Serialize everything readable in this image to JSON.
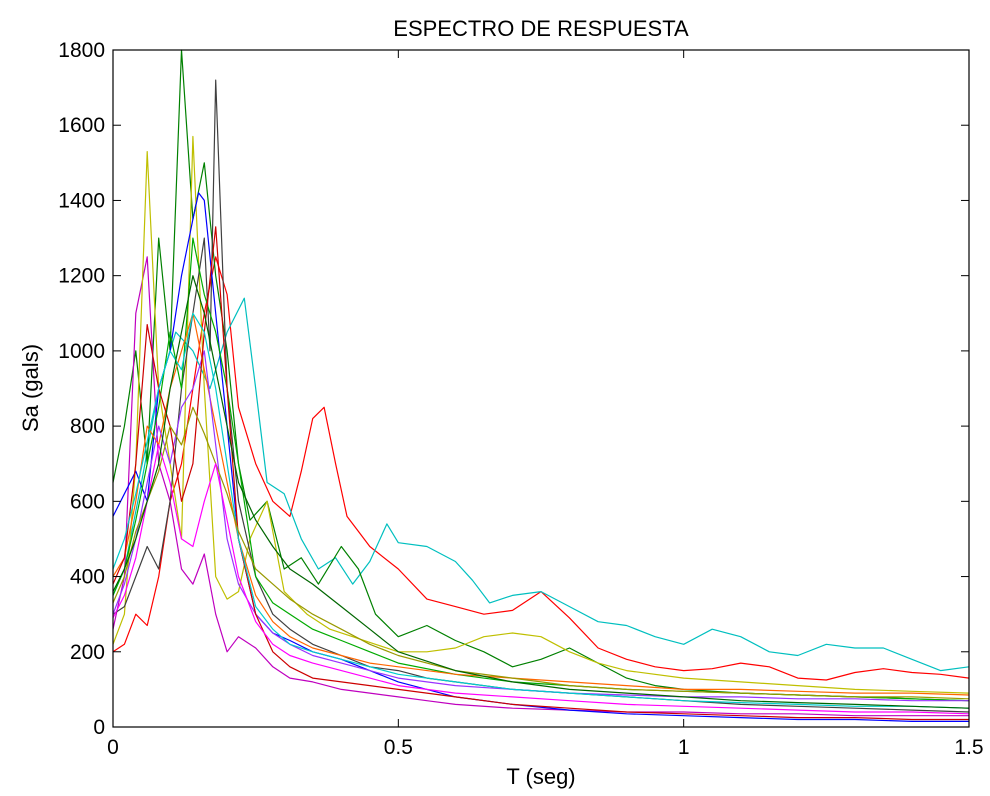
{
  "chart_data": {
    "type": "line",
    "title": "ESPECTRO DE RESPUESTA",
    "xlabel": "T (seg)",
    "ylabel": "Sa (gals)",
    "xlim": [
      0,
      1.5
    ],
    "ylim": [
      0,
      1800
    ],
    "xticks": [
      0,
      0.5,
      1,
      1.5
    ],
    "xtick_labels": [
      "0",
      "0.5",
      "1",
      "1.5"
    ],
    "yticks": [
      0,
      200,
      400,
      600,
      800,
      1000,
      1200,
      1400,
      1600,
      1800
    ],
    "ytick_labels": [
      "0",
      "200",
      "400",
      "600",
      "800",
      "1000",
      "1200",
      "1400",
      "1600",
      "1800"
    ],
    "grid": false,
    "legend": "none",
    "series": [
      {
        "color": "#ff0000",
        "x": [
          0,
          0.02,
          0.04,
          0.06,
          0.08,
          0.1,
          0.12,
          0.14,
          0.16,
          0.18,
          0.2,
          0.22,
          0.25,
          0.28,
          0.31,
          0.33,
          0.35,
          0.37,
          0.39,
          0.41,
          0.43,
          0.45,
          0.5,
          0.55,
          0.6,
          0.65,
          0.7,
          0.75,
          0.8,
          0.85,
          0.9,
          0.95,
          1.0,
          1.05,
          1.1,
          1.15,
          1.2,
          1.25,
          1.3,
          1.35,
          1.4,
          1.45,
          1.5
        ],
        "y": [
          200,
          220,
          300,
          270,
          400,
          600,
          700,
          900,
          1100,
          1250,
          1150,
          850,
          700,
          600,
          560,
          680,
          820,
          850,
          700,
          560,
          520,
          480,
          420,
          340,
          320,
          300,
          310,
          360,
          290,
          210,
          180,
          160,
          150,
          155,
          170,
          160,
          130,
          125,
          145,
          155,
          145,
          140,
          130
        ]
      },
      {
        "color": "#00bfbf",
        "x": [
          0,
          0.02,
          0.05,
          0.08,
          0.11,
          0.14,
          0.17,
          0.2,
          0.23,
          0.25,
          0.27,
          0.3,
          0.33,
          0.36,
          0.39,
          0.42,
          0.45,
          0.48,
          0.5,
          0.55,
          0.6,
          0.63,
          0.66,
          0.7,
          0.75,
          0.8,
          0.85,
          0.9,
          0.95,
          1.0,
          1.05,
          1.1,
          1.15,
          1.2,
          1.25,
          1.3,
          1.35,
          1.4,
          1.45,
          1.5
        ],
        "y": [
          350,
          420,
          650,
          900,
          1050,
          1000,
          900,
          1050,
          1140,
          900,
          650,
          620,
          500,
          420,
          450,
          380,
          440,
          540,
          490,
          480,
          440,
          390,
          330,
          350,
          360,
          320,
          280,
          270,
          240,
          220,
          260,
          240,
          200,
          190,
          220,
          210,
          210,
          180,
          150,
          160
        ]
      },
      {
        "color": "#008000",
        "x": [
          0,
          0.02,
          0.04,
          0.06,
          0.08,
          0.1,
          0.12,
          0.14,
          0.16,
          0.18,
          0.2,
          0.22,
          0.24,
          0.27,
          0.3,
          0.33,
          0.36,
          0.4,
          0.43,
          0.46,
          0.5,
          0.55,
          0.6,
          0.65,
          0.7,
          0.75,
          0.8,
          0.85,
          0.9,
          0.95,
          1.0,
          1.1,
          1.2,
          1.3,
          1.4,
          1.5
        ],
        "y": [
          650,
          800,
          1000,
          700,
          1300,
          1000,
          1800,
          1350,
          1500,
          1200,
          1000,
          700,
          550,
          600,
          420,
          450,
          380,
          480,
          420,
          300,
          240,
          270,
          230,
          200,
          160,
          180,
          210,
          170,
          130,
          110,
          100,
          90,
          85,
          80,
          75,
          70
        ]
      },
      {
        "color": "#bf00bf",
        "x": [
          0,
          0.02,
          0.04,
          0.06,
          0.08,
          0.1,
          0.12,
          0.14,
          0.16,
          0.18,
          0.2,
          0.22,
          0.25,
          0.28,
          0.31,
          0.35,
          0.4,
          0.45,
          0.5,
          0.55,
          0.6,
          0.7,
          0.8,
          0.9,
          1.0,
          1.1,
          1.2,
          1.3,
          1.4,
          1.5
        ],
        "y": [
          260,
          400,
          1100,
          1250,
          700,
          600,
          420,
          380,
          460,
          300,
          200,
          240,
          210,
          160,
          130,
          120,
          100,
          90,
          80,
          70,
          60,
          50,
          45,
          40,
          40,
          35,
          35,
          30,
          30,
          30
        ]
      },
      {
        "color": "#bfbf00",
        "x": [
          0,
          0.02,
          0.04,
          0.06,
          0.08,
          0.1,
          0.12,
          0.14,
          0.16,
          0.18,
          0.2,
          0.22,
          0.24,
          0.27,
          0.3,
          0.34,
          0.38,
          0.42,
          0.46,
          0.5,
          0.55,
          0.6,
          0.65,
          0.7,
          0.75,
          0.8,
          0.85,
          0.9,
          1.0,
          1.1,
          1.2,
          1.3,
          1.4,
          1.5
        ],
        "y": [
          220,
          300,
          700,
          1530,
          900,
          700,
          500,
          1570,
          900,
          400,
          340,
          360,
          500,
          600,
          360,
          300,
          260,
          240,
          220,
          200,
          200,
          210,
          240,
          250,
          240,
          200,
          170,
          150,
          130,
          120,
          110,
          100,
          95,
          90
        ]
      },
      {
        "color": "#404040",
        "x": [
          0,
          0.02,
          0.04,
          0.06,
          0.08,
          0.1,
          0.12,
          0.14,
          0.16,
          0.17,
          0.18,
          0.2,
          0.22,
          0.25,
          0.28,
          0.31,
          0.35,
          0.4,
          0.45,
          0.5,
          0.55,
          0.6,
          0.7,
          0.8,
          0.9,
          1.0,
          1.1,
          1.2,
          1.3,
          1.4,
          1.5
        ],
        "y": [
          300,
          320,
          400,
          480,
          420,
          600,
          900,
          1100,
          1300,
          1000,
          1720,
          900,
          600,
          400,
          300,
          260,
          220,
          190,
          160,
          150,
          130,
          120,
          100,
          90,
          80,
          70,
          60,
          55,
          50,
          45,
          40
        ]
      },
      {
        "color": "#0000ff",
        "x": [
          0,
          0.02,
          0.04,
          0.06,
          0.08,
          0.1,
          0.12,
          0.14,
          0.15,
          0.16,
          0.18,
          0.2,
          0.22,
          0.25,
          0.28,
          0.31,
          0.35,
          0.4,
          0.45,
          0.5,
          0.55,
          0.6,
          0.7,
          0.8,
          0.9,
          1.0,
          1.1,
          1.2,
          1.3,
          1.4,
          1.5
        ],
        "y": [
          560,
          620,
          680,
          600,
          900,
          1000,
          1200,
          1350,
          1420,
          1400,
          1100,
          800,
          500,
          300,
          250,
          230,
          200,
          180,
          150,
          120,
          100,
          80,
          60,
          45,
          35,
          30,
          25,
          20,
          20,
          15,
          15
        ]
      },
      {
        "color": "#00aa00",
        "x": [
          0,
          0.02,
          0.04,
          0.06,
          0.08,
          0.1,
          0.12,
          0.14,
          0.16,
          0.18,
          0.2,
          0.22,
          0.25,
          0.28,
          0.31,
          0.35,
          0.4,
          0.45,
          0.5,
          0.6,
          0.7,
          0.8,
          0.9,
          1.0,
          1.1,
          1.2,
          1.3,
          1.4,
          1.5
        ],
        "y": [
          350,
          420,
          550,
          700,
          850,
          1050,
          900,
          1300,
          1150,
          1050,
          900,
          700,
          400,
          330,
          300,
          260,
          230,
          200,
          170,
          140,
          120,
          110,
          100,
          95,
          90,
          85,
          80,
          75,
          70
        ]
      },
      {
        "color": "#ff6600",
        "x": [
          0,
          0.02,
          0.04,
          0.06,
          0.08,
          0.1,
          0.12,
          0.14,
          0.16,
          0.18,
          0.2,
          0.22,
          0.25,
          0.28,
          0.31,
          0.35,
          0.4,
          0.45,
          0.5,
          0.6,
          0.7,
          0.8,
          0.9,
          1.0,
          1.1,
          1.2,
          1.3,
          1.4,
          1.5
        ],
        "y": [
          400,
          450,
          600,
          800,
          750,
          900,
          1000,
          1100,
          950,
          800,
          650,
          500,
          350,
          280,
          240,
          210,
          190,
          170,
          160,
          140,
          130,
          120,
          110,
          100,
          100,
          95,
          90,
          90,
          85
        ]
      },
      {
        "color": "#9933ff",
        "x": [
          0,
          0.02,
          0.04,
          0.06,
          0.08,
          0.1,
          0.12,
          0.14,
          0.16,
          0.18,
          0.2,
          0.22,
          0.25,
          0.28,
          0.31,
          0.35,
          0.4,
          0.45,
          0.5,
          0.6,
          0.7,
          0.8,
          0.9,
          1.0,
          1.1,
          1.2,
          1.3,
          1.4,
          1.5
        ],
        "y": [
          300,
          380,
          500,
          650,
          800,
          700,
          850,
          900,
          1000,
          750,
          500,
          380,
          300,
          250,
          220,
          190,
          170,
          150,
          130,
          110,
          100,
          90,
          85,
          80,
          80,
          75,
          75,
          70,
          70
        ]
      },
      {
        "color": "#cc0000",
        "x": [
          0,
          0.02,
          0.04,
          0.06,
          0.08,
          0.1,
          0.12,
          0.14,
          0.16,
          0.18,
          0.2,
          0.22,
          0.25,
          0.28,
          0.31,
          0.35,
          0.4,
          0.45,
          0.5,
          0.6,
          0.7,
          0.8,
          0.9,
          1.0,
          1.1,
          1.2,
          1.3,
          1.4,
          1.5
        ],
        "y": [
          380,
          450,
          700,
          1070,
          900,
          800,
          600,
          700,
          1050,
          1330,
          900,
          500,
          300,
          200,
          160,
          130,
          120,
          110,
          100,
          80,
          60,
          50,
          40,
          35,
          30,
          25,
          25,
          20,
          20
        ]
      },
      {
        "color": "#00cccc",
        "x": [
          0,
          0.02,
          0.04,
          0.06,
          0.08,
          0.1,
          0.12,
          0.14,
          0.16,
          0.18,
          0.2,
          0.22,
          0.25,
          0.28,
          0.31,
          0.35,
          0.4,
          0.45,
          0.5,
          0.6,
          0.7,
          0.8,
          0.9,
          1.0,
          1.1,
          1.2,
          1.3,
          1.4,
          1.5
        ],
        "y": [
          420,
          500,
          620,
          760,
          900,
          1000,
          950,
          1100,
          1050,
          900,
          700,
          500,
          320,
          260,
          220,
          200,
          180,
          160,
          140,
          120,
          100,
          90,
          80,
          70,
          65,
          60,
          55,
          55,
          50
        ]
      },
      {
        "color": "#999900",
        "x": [
          0,
          0.02,
          0.04,
          0.06,
          0.08,
          0.1,
          0.12,
          0.14,
          0.16,
          0.18,
          0.2,
          0.22,
          0.25,
          0.28,
          0.31,
          0.35,
          0.4,
          0.45,
          0.5,
          0.6,
          0.7,
          0.8,
          0.9,
          1.0,
          1.1,
          1.2,
          1.3,
          1.4,
          1.5
        ],
        "y": [
          330,
          400,
          520,
          600,
          680,
          800,
          750,
          850,
          780,
          700,
          620,
          520,
          420,
          380,
          340,
          300,
          260,
          220,
          190,
          150,
          130,
          110,
          100,
          95,
          90,
          85,
          80,
          80,
          75
        ]
      },
      {
        "color": "#ff00ff",
        "x": [
          0,
          0.02,
          0.04,
          0.06,
          0.08,
          0.1,
          0.12,
          0.14,
          0.16,
          0.18,
          0.2,
          0.22,
          0.25,
          0.28,
          0.31,
          0.35,
          0.4,
          0.45,
          0.5,
          0.6,
          0.7,
          0.8,
          0.9,
          1.0,
          1.1,
          1.2,
          1.3,
          1.4,
          1.5
        ],
        "y": [
          290,
          350,
          450,
          600,
          750,
          650,
          500,
          480,
          600,
          700,
          550,
          400,
          280,
          220,
          190,
          170,
          150,
          130,
          110,
          90,
          80,
          70,
          60,
          55,
          50,
          45,
          40,
          40,
          35
        ]
      },
      {
        "color": "#006600",
        "x": [
          0,
          0.02,
          0.04,
          0.06,
          0.08,
          0.1,
          0.12,
          0.14,
          0.16,
          0.18,
          0.2,
          0.22,
          0.25,
          0.28,
          0.31,
          0.35,
          0.4,
          0.45,
          0.5,
          0.6,
          0.7,
          0.8,
          0.9,
          1.0,
          1.1,
          1.2,
          1.3,
          1.4,
          1.5
        ],
        "y": [
          360,
          420,
          500,
          600,
          700,
          900,
          1050,
          1200,
          1100,
          950,
          800,
          650,
          550,
          480,
          420,
          380,
          320,
          260,
          200,
          150,
          120,
          100,
          90,
          80,
          70,
          65,
          60,
          55,
          50
        ]
      }
    ]
  }
}
